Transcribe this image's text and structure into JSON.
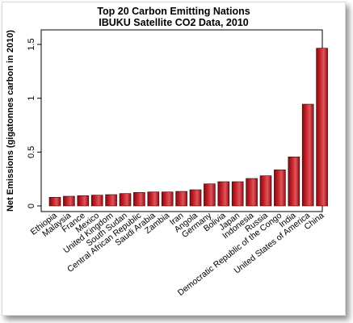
{
  "chart_data": {
    "type": "bar",
    "title": "Top 20 Carbon Emitting Nations",
    "subtitle": "IBUKU Satellite CO2 Data, 2010",
    "xlabel": "",
    "ylabel": "Net Emissions (gigatonnes carbon in 2010)",
    "ylim": [
      0,
      1.55
    ],
    "yticks": [
      "0",
      "0.5",
      "1",
      "1.5"
    ],
    "grid": false,
    "bar_color": "#c8232b",
    "categories": [
      "Ethiopia",
      "Malaysia",
      "France",
      "Mexico",
      "United Kingdom",
      "South Sudan",
      "Central African Republic",
      "Saudi Arabia",
      "Zambia",
      "Iran",
      "Angola",
      "Germany",
      "Bolivia",
      "Japan",
      "Indonesia",
      "Russia",
      "Democratic Republic of the Congo",
      "India",
      "United States of America",
      "China"
    ],
    "values": [
      0.08,
      0.09,
      0.095,
      0.1,
      0.105,
      0.115,
      0.125,
      0.13,
      0.13,
      0.135,
      0.15,
      0.205,
      0.225,
      0.225,
      0.255,
      0.28,
      0.335,
      0.455,
      0.945,
      1.465
    ]
  }
}
